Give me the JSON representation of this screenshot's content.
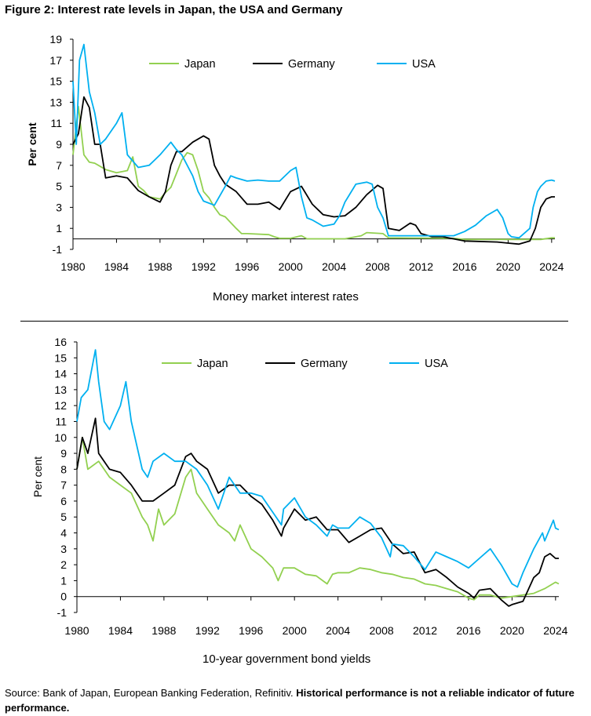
{
  "title": "Figure 2: Interest rate levels in Japan, the USA and Germany",
  "source_text": "Source: Bank of Japan, European Banking Federation, Refinitiv.",
  "source_bold": "Historical performance is not a reliable indicator of future performance.",
  "colors": {
    "Japan": "#92d050",
    "Germany": "#000000",
    "USA": "#00b0f0"
  },
  "chart_data": [
    {
      "type": "line",
      "title": "Money market interest rates",
      "xlabel": "",
      "ylabel": "Per cent",
      "xlim": [
        1980,
        2024.3
      ],
      "ylim": [
        -1,
        19
      ],
      "xticks": [
        1980,
        1984,
        1988,
        1992,
        1996,
        2000,
        2004,
        2008,
        2012,
        2016,
        2020,
        2024
      ],
      "yticks": [
        -1,
        1,
        3,
        5,
        7,
        9,
        11,
        13,
        15,
        17,
        19
      ],
      "legend": "top",
      "series": [
        {
          "name": "Japan",
          "x": [
            1980,
            1980.5,
            1981,
            1981.5,
            1982,
            1983,
            1984,
            1985,
            1985.5,
            1986,
            1986.5,
            1987,
            1988,
            1988.5,
            1989,
            1989.5,
            1990,
            1990.5,
            1991,
            1991.5,
            1992,
            1992.5,
            1993,
            1993.5,
            1994,
            1995,
            1995.5,
            1996,
            1998,
            1998.5,
            1999,
            2000,
            2001,
            2001.5,
            2005,
            2006.5,
            2007,
            2008.5,
            2009,
            2015,
            2016,
            2020,
            2023,
            2024,
            2024.3
          ],
          "y": [
            8,
            12.6,
            8,
            7.3,
            7.2,
            6.6,
            6.3,
            6.5,
            7.8,
            5,
            4.6,
            4,
            3.8,
            4.4,
            4.9,
            6.2,
            7.5,
            8.2,
            8,
            6.5,
            4.5,
            3.9,
            3,
            2.3,
            2.1,
            1,
            0.5,
            0.5,
            0.4,
            0.2,
            0.05,
            0.05,
            0.3,
            0.01,
            0.01,
            0.3,
            0.6,
            0.5,
            0.1,
            0.05,
            -0.05,
            -0.05,
            -0.05,
            0.1,
            0.1
          ]
        },
        {
          "name": "Germany",
          "x": [
            1980,
            1980.5,
            1981,
            1981.5,
            1982,
            1982.5,
            1983,
            1984,
            1985,
            1986,
            1987,
            1988,
            1988.5,
            1989,
            1989.5,
            1990,
            1991,
            1992,
            1992.5,
            1993,
            1993.5,
            1994,
            1995,
            1996,
            1997,
            1998,
            1999,
            2000,
            2001,
            2002,
            2003,
            2004,
            2005,
            2006,
            2007,
            2008,
            2008.5,
            2009,
            2010,
            2011,
            2011.5,
            2012,
            2013,
            2014,
            2015,
            2016,
            2019,
            2020,
            2021,
            2022,
            2022.5,
            2023,
            2023.5,
            2024,
            2024.3
          ],
          "y": [
            9,
            10,
            13.5,
            12.5,
            9,
            9,
            5.8,
            6,
            5.8,
            4.6,
            4,
            3.5,
            4.5,
            7,
            8.3,
            8.3,
            9.2,
            9.8,
            9.5,
            7,
            6,
            5.2,
            4.5,
            3.3,
            3.3,
            3.5,
            2.8,
            4.5,
            5,
            3.3,
            2.3,
            2.1,
            2.2,
            3,
            4.2,
            5.1,
            4.8,
            1,
            0.8,
            1.5,
            1.3,
            0.5,
            0.2,
            0.2,
            0,
            -0.2,
            -0.3,
            -0.4,
            -0.5,
            -0.2,
            1,
            3,
            3.8,
            4,
            4
          ]
        },
        {
          "name": "USA",
          "x": [
            1980,
            1980.3,
            1980.6,
            1981,
            1981.5,
            1982,
            1982.5,
            1983,
            1984,
            1984.5,
            1985,
            1986,
            1987,
            1987.5,
            1988,
            1989,
            1989.5,
            1990,
            1991,
            1991.5,
            1992,
            1993,
            1994,
            1994.5,
            1995,
            1996,
            1997,
            1998,
            1999,
            2000,
            2000.5,
            2001,
            2001.5,
            2002,
            2003,
            2004,
            2004.5,
            2005,
            2006,
            2007,
            2007.5,
            2008,
            2008.5,
            2009,
            2015,
            2016,
            2017,
            2018,
            2019,
            2019.5,
            2020,
            2020.3,
            2021,
            2022,
            2022.3,
            2022.7,
            2023,
            2023.5,
            2024,
            2024.3
          ],
          "y": [
            15,
            9,
            17,
            18.5,
            14,
            12,
            9,
            9.5,
            11,
            12,
            8,
            6.8,
            7,
            7.5,
            8,
            9.2,
            8.5,
            8,
            6,
            4.5,
            3.6,
            3.2,
            5,
            6,
            5.8,
            5.5,
            5.6,
            5.5,
            5.5,
            6.5,
            6.8,
            4,
            2,
            1.8,
            1.2,
            1.4,
            2.2,
            3.5,
            5.2,
            5.4,
            5.2,
            3,
            2,
            0.3,
            0.3,
            0.7,
            1.3,
            2.2,
            2.8,
            2,
            0.5,
            0.2,
            0.1,
            1,
            3,
            4.5,
            5,
            5.5,
            5.6,
            5.5
          ]
        }
      ]
    },
    {
      "type": "line",
      "title": "10-year government bond yields",
      "xlabel": "",
      "ylabel": "Per cent",
      "xlim": [
        1980,
        2024.3
      ],
      "ylim": [
        -1,
        16
      ],
      "xticks": [
        1980,
        1984,
        1988,
        1992,
        1996,
        2000,
        2004,
        2008,
        2012,
        2016,
        2020,
        2024
      ],
      "yticks": [
        -1,
        0,
        1,
        2,
        3,
        4,
        5,
        6,
        7,
        8,
        9,
        10,
        11,
        12,
        13,
        14,
        15,
        16
      ],
      "legend": "top",
      "series": [
        {
          "name": "Japan",
          "x": [
            1980,
            1980.5,
            1981,
            1982,
            1983,
            1984,
            1985,
            1986,
            1986.5,
            1987,
            1987.5,
            1988,
            1989,
            1990,
            1990.5,
            1991,
            1992,
            1993,
            1994,
            1994.5,
            1995,
            1996,
            1997,
            1998,
            1998.5,
            1999,
            2000,
            2001,
            2002,
            2003,
            2003.5,
            2004,
            2005,
            2006,
            2007,
            2008,
            2009,
            2010,
            2011,
            2012,
            2013,
            2014,
            2015,
            2016,
            2016.5,
            2017,
            2018,
            2019,
            2020,
            2021,
            2022,
            2023,
            2024,
            2024.3
          ],
          "y": [
            8,
            10,
            8,
            8.5,
            7.5,
            7,
            6.5,
            5,
            4.5,
            3.5,
            5.5,
            4.5,
            5.2,
            7.5,
            8,
            6.5,
            5.5,
            4.5,
            4,
            3.5,
            4.5,
            3,
            2.5,
            1.8,
            1,
            1.8,
            1.8,
            1.4,
            1.3,
            0.8,
            1.4,
            1.5,
            1.5,
            1.8,
            1.7,
            1.5,
            1.4,
            1.2,
            1.1,
            0.8,
            0.7,
            0.5,
            0.3,
            -0.1,
            -0.2,
            0.1,
            0.1,
            -0.1,
            0,
            0.1,
            0.2,
            0.5,
            0.9,
            0.8
          ]
        },
        {
          "name": "Germany",
          "x": [
            1980,
            1980.5,
            1981,
            1981.7,
            1982,
            1983,
            1984,
            1985,
            1986,
            1986.5,
            1987,
            1988,
            1989,
            1990,
            1990.5,
            1991,
            1992,
            1993,
            1994,
            1995,
            1996,
            1997,
            1998,
            1998.8,
            1999,
            2000,
            2001,
            2002,
            2003,
            2004,
            2005,
            2006,
            2007,
            2008,
            2009,
            2010,
            2011,
            2012,
            2013,
            2014,
            2015,
            2016,
            2016.5,
            2017,
            2018,
            2019,
            2019.7,
            2020,
            2021,
            2022,
            2022.5,
            2023,
            2023.5,
            2024,
            2024.3
          ],
          "y": [
            8,
            10,
            9,
            11.2,
            9,
            8,
            7.8,
            7,
            6,
            6,
            6,
            6.5,
            7,
            8.8,
            9,
            8.5,
            8,
            6.5,
            7,
            7,
            6.3,
            5.8,
            4.8,
            3.8,
            4.3,
            5.5,
            4.8,
            5,
            4.2,
            4.2,
            3.4,
            3.8,
            4.2,
            4.3,
            3.3,
            2.7,
            2.8,
            1.5,
            1.7,
            1.2,
            0.6,
            0.2,
            -0.1,
            0.4,
            0.5,
            -0.2,
            -0.6,
            -0.5,
            -0.3,
            1.2,
            1.5,
            2.5,
            2.7,
            2.4,
            2.4
          ]
        },
        {
          "name": "USA",
          "x": [
            1980,
            1980.4,
            1981,
            1981.7,
            1982,
            1982.5,
            1983,
            1984,
            1984.5,
            1985,
            1986,
            1986.5,
            1987,
            1988,
            1989,
            1990,
            1991,
            1992,
            1993,
            1994,
            1995,
            1996,
            1997,
            1998,
            1998.8,
            1999,
            2000,
            2001,
            2002,
            2003,
            2003.5,
            2004,
            2005,
            2006,
            2007,
            2008,
            2008.8,
            2009,
            2010,
            2011,
            2012,
            2013,
            2014,
            2015,
            2016,
            2017,
            2018,
            2019,
            2020,
            2020.5,
            2021,
            2022,
            2022.8,
            2023,
            2023.8,
            2024,
            2024.3
          ],
          "y": [
            11,
            12.5,
            13,
            15.5,
            13.5,
            11,
            10.5,
            12,
            13.5,
            11,
            8,
            7.5,
            8.5,
            9,
            8.5,
            8.5,
            8,
            7,
            5.5,
            7.5,
            6.5,
            6.5,
            6.3,
            5.3,
            4.5,
            5.5,
            6.2,
            5,
            4.5,
            3.8,
            4.5,
            4.3,
            4.3,
            5,
            4.6,
            3.7,
            2.5,
            3.3,
            3.2,
            2.5,
            1.7,
            2.8,
            2.5,
            2.2,
            1.8,
            2.4,
            3,
            2,
            0.8,
            0.6,
            1.5,
            3,
            4,
            3.5,
            4.8,
            4.3,
            4.2
          ]
        }
      ]
    }
  ]
}
